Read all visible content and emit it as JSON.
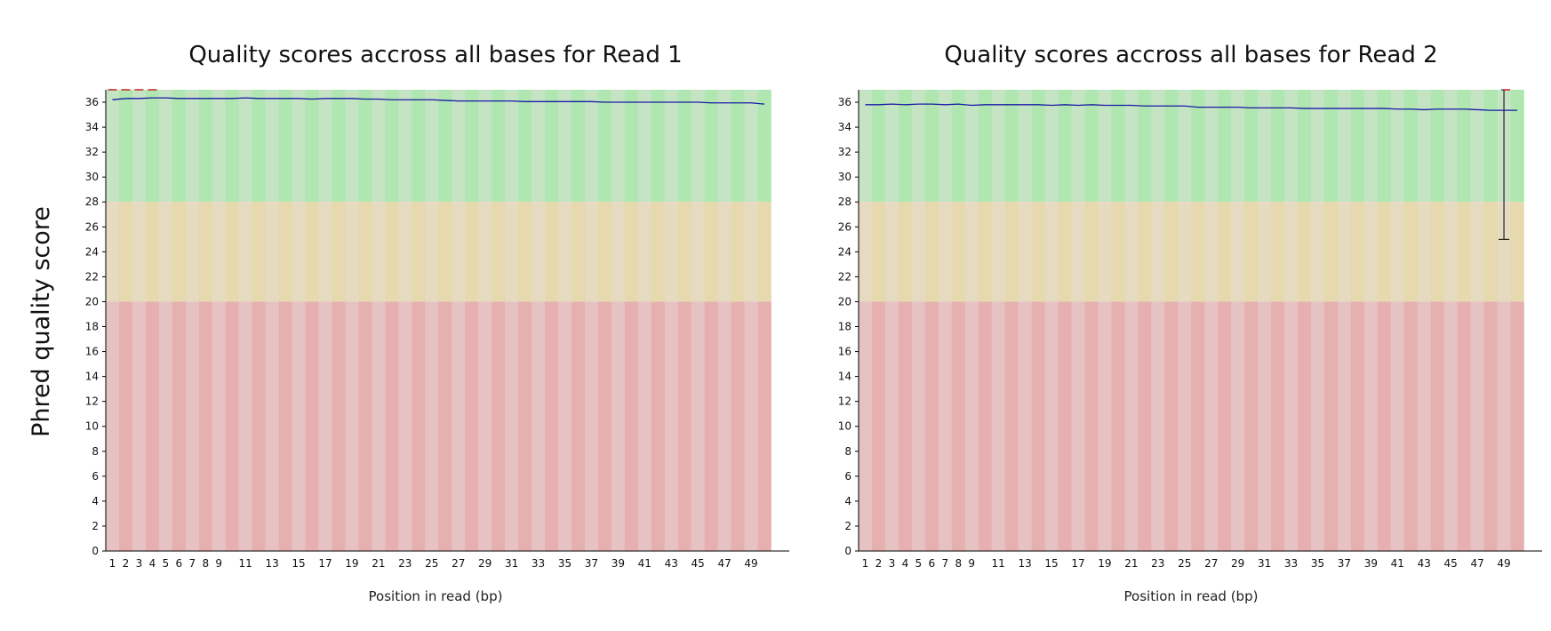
{
  "figure": {
    "ylabel": "Phred quality score"
  },
  "chart_data": [
    {
      "type": "line",
      "title": "Quality scores accross all bases for Read 1",
      "xlabel": "Position in read (bp)",
      "ylabel": "Phred quality score",
      "ylim": [
        0,
        37
      ],
      "yticks": [
        0,
        2,
        4,
        6,
        8,
        10,
        12,
        14,
        16,
        18,
        20,
        22,
        24,
        26,
        28,
        30,
        32,
        34,
        36
      ],
      "xtick_labels": [
        1,
        2,
        3,
        4,
        5,
        6,
        7,
        8,
        9,
        11,
        13,
        15,
        17,
        19,
        21,
        23,
        25,
        27,
        29,
        31,
        33,
        35,
        37,
        39,
        41,
        43,
        45,
        47,
        49
      ],
      "quality_zones": [
        {
          "name": "good",
          "range": [
            28,
            37
          ],
          "colors": [
            "#c4e4c4",
            "#b0e6b0"
          ]
        },
        {
          "name": "reasonable",
          "range": [
            20,
            28
          ],
          "colors": [
            "#e6dbc0",
            "#e6d9ae"
          ]
        },
        {
          "name": "poor",
          "range": [
            0,
            20
          ],
          "colors": [
            "#e6c2c2",
            "#e6b0b0"
          ]
        }
      ],
      "series": [
        {
          "color": "#1a1aa6",
          "x": [
            1,
            2,
            3,
            4,
            5,
            6,
            7,
            8,
            9,
            10,
            11,
            12,
            13,
            14,
            15,
            16,
            17,
            18,
            19,
            20,
            21,
            22,
            23,
            24,
            25,
            26,
            27,
            28,
            29,
            30,
            31,
            32,
            33,
            34,
            35,
            36,
            37,
            38,
            39,
            40,
            41,
            42,
            43,
            44,
            45,
            46,
            47,
            48,
            49,
            50
          ],
          "values": [
            36.2,
            36.3,
            36.3,
            36.35,
            36.35,
            36.3,
            36.3,
            36.3,
            36.3,
            36.3,
            36.35,
            36.3,
            36.3,
            36.3,
            36.3,
            36.25,
            36.3,
            36.3,
            36.3,
            36.25,
            36.25,
            36.2,
            36.2,
            36.2,
            36.2,
            36.15,
            36.1,
            36.1,
            36.1,
            36.1,
            36.1,
            36.05,
            36.05,
            36.05,
            36.05,
            36.05,
            36.05,
            36.0,
            36.0,
            36.0,
            36.0,
            36.0,
            36.0,
            36.0,
            36.0,
            35.95,
            35.95,
            35.95,
            35.95,
            35.85
          ]
        }
      ],
      "error_bars": [
        {
          "x": 1,
          "low": 37,
          "high": 37
        },
        {
          "x": 2,
          "low": 37,
          "high": 37
        },
        {
          "x": 3,
          "low": 37,
          "high": 37
        },
        {
          "x": 4,
          "low": 37,
          "high": 37
        }
      ]
    },
    {
      "type": "line",
      "title": "Quality scores accross all bases for Read 2",
      "xlabel": "Position in read (bp)",
      "ylabel": "Phred quality score",
      "ylim": [
        0,
        37
      ],
      "yticks": [
        0,
        2,
        4,
        6,
        8,
        10,
        12,
        14,
        16,
        18,
        20,
        22,
        24,
        26,
        28,
        30,
        32,
        34,
        36
      ],
      "xtick_labels": [
        1,
        2,
        3,
        4,
        5,
        6,
        7,
        8,
        9,
        11,
        13,
        15,
        17,
        19,
        21,
        23,
        25,
        27,
        29,
        31,
        33,
        35,
        37,
        39,
        41,
        43,
        45,
        47,
        49
      ],
      "quality_zones": [
        {
          "name": "good",
          "range": [
            28,
            37
          ],
          "colors": [
            "#c4e4c4",
            "#b0e6b0"
          ]
        },
        {
          "name": "reasonable",
          "range": [
            20,
            28
          ],
          "colors": [
            "#e6dbc0",
            "#e6d9ae"
          ]
        },
        {
          "name": "poor",
          "range": [
            0,
            20
          ],
          "colors": [
            "#e6c2c2",
            "#e6b0b0"
          ]
        }
      ],
      "series": [
        {
          "color": "#1a1aa6",
          "x": [
            1,
            2,
            3,
            4,
            5,
            6,
            7,
            8,
            9,
            10,
            11,
            12,
            13,
            14,
            15,
            16,
            17,
            18,
            19,
            20,
            21,
            22,
            23,
            24,
            25,
            26,
            27,
            28,
            29,
            30,
            31,
            32,
            33,
            34,
            35,
            36,
            37,
            38,
            39,
            40,
            41,
            42,
            43,
            44,
            45,
            46,
            47,
            48,
            49,
            50
          ],
          "values": [
            35.8,
            35.8,
            35.85,
            35.8,
            35.85,
            35.85,
            35.8,
            35.85,
            35.75,
            35.8,
            35.8,
            35.8,
            35.8,
            35.8,
            35.75,
            35.8,
            35.75,
            35.8,
            35.75,
            35.75,
            35.75,
            35.7,
            35.7,
            35.7,
            35.7,
            35.6,
            35.6,
            35.6,
            35.6,
            35.55,
            35.55,
            35.55,
            35.55,
            35.5,
            35.5,
            35.5,
            35.5,
            35.5,
            35.5,
            35.5,
            35.45,
            35.45,
            35.4,
            35.45,
            35.45,
            35.45,
            35.4,
            35.35,
            35.35,
            35.35
          ]
        }
      ],
      "error_bars": [
        {
          "x": 49,
          "low": 25,
          "high": 37
        }
      ]
    }
  ]
}
